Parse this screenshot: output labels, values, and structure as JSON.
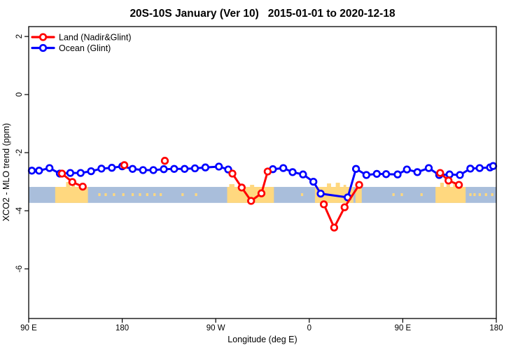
{
  "chart_data": {
    "type": "line",
    "title": "20S-10S January (Ver 10)   2015-01-01 to 2020-12-18",
    "xlabel": "Longitude (deg E)",
    "ylabel": "XCO2 - MLO trend (ppm)",
    "grid": false,
    "legend_position": "top-left-inside",
    "x_axis": {
      "range": [
        90,
        540
      ],
      "ticks": [
        {
          "pos": 90,
          "label": "90 E"
        },
        {
          "pos": 180,
          "label": "180"
        },
        {
          "pos": 270,
          "label": "90 W"
        },
        {
          "pos": 360,
          "label": "0"
        },
        {
          "pos": 450,
          "label": "90 E"
        },
        {
          "pos": 540,
          "label": "180"
        }
      ]
    },
    "y_axis": {
      "range": [
        2.34,
        -7.71
      ],
      "ticks": [
        {
          "pos": 2,
          "label": "2"
        },
        {
          "pos": 0,
          "label": "0"
        },
        {
          "pos": -2,
          "label": "-2"
        },
        {
          "pos": -4,
          "label": "-4"
        },
        {
          "pos": -6,
          "label": "-6"
        }
      ]
    },
    "series": [
      {
        "name": "Ocean (Glint)",
        "color": "#0000FF",
        "segments": [
          [
            [
              93,
              -2.62
            ],
            [
              100,
              -2.62
            ],
            [
              110,
              -2.53
            ],
            [
              120,
              -2.72
            ],
            [
              130,
              -2.7
            ],
            [
              140,
              -2.7
            ],
            [
              150,
              -2.64
            ],
            [
              160,
              -2.55
            ],
            [
              170,
              -2.52
            ],
            [
              180,
              -2.47
            ],
            [
              190,
              -2.56
            ],
            [
              200,
              -2.6
            ],
            [
              210,
              -2.6
            ],
            [
              220,
              -2.57
            ],
            [
              230,
              -2.56
            ],
            [
              240,
              -2.56
            ],
            [
              250,
              -2.54
            ],
            [
              260,
              -2.51
            ],
            [
              273,
              -2.48
            ],
            [
              282,
              -2.58
            ]
          ],
          [
            [
              325,
              -2.57
            ],
            [
              335,
              -2.53
            ],
            [
              344,
              -2.67
            ],
            [
              354,
              -2.75
            ],
            [
              364,
              -3.0
            ],
            [
              371,
              -3.41
            ],
            [
              397,
              -3.54
            ],
            [
              405,
              -2.56
            ],
            [
              415,
              -2.77
            ],
            [
              425,
              -2.73
            ],
            [
              434,
              -2.74
            ],
            [
              445,
              -2.75
            ],
            [
              454,
              -2.58
            ],
            [
              464,
              -2.67
            ],
            [
              475,
              -2.53
            ],
            [
              485,
              -2.77
            ],
            [
              495,
              -2.75
            ],
            [
              505,
              -2.77
            ],
            [
              515,
              -2.55
            ],
            [
              524,
              -2.53
            ],
            [
              534,
              -2.51
            ],
            [
              537,
              -2.46
            ]
          ]
        ]
      },
      {
        "name": "Land (Nadir&Glint)",
        "color": "#FF0000",
        "segments": [
          [
            [
              122,
              -2.72
            ],
            [
              132,
              -3.01
            ],
            [
              142,
              -3.17
            ]
          ],
          [
            [
              182,
              -2.43
            ]
          ],
          [
            [
              221,
              -2.28
            ]
          ],
          [
            [
              286,
              -2.72
            ],
            [
              295,
              -3.2
            ],
            [
              304,
              -3.66
            ],
            [
              314,
              -3.4
            ],
            [
              320,
              -2.65
            ]
          ],
          [
            [
              374,
              -3.78
            ],
            [
              384,
              -4.58
            ],
            [
              394,
              -3.88
            ],
            [
              408,
              -3.11
            ]
          ],
          [
            [
              486,
              -2.7
            ],
            [
              494,
              -2.96
            ],
            [
              504,
              -3.11
            ]
          ]
        ]
      }
    ],
    "map_strip": {
      "y_top": -3.18,
      "y_bottom": -3.73,
      "ocean_color": "#A9BEDB",
      "land_color": "#FFD87F",
      "land_patches": [
        {
          "from": 115.5,
          "to": 147
        },
        {
          "from": 281,
          "to": 326
        },
        {
          "from": 365.5,
          "to": 402.5
        },
        {
          "from": 404.5,
          "to": 410.5
        },
        {
          "from": 481.5,
          "to": 510.5
        }
      ],
      "coast_bumps": [
        {
          "from": 126,
          "to": 130,
          "rise": 7
        },
        {
          "from": 131.5,
          "to": 134.5,
          "rise": 5
        },
        {
          "from": 139,
          "to": 141,
          "rise": 3
        },
        {
          "from": 283,
          "to": 288,
          "rise": 4
        },
        {
          "from": 303,
          "to": 307,
          "rise": 3
        },
        {
          "from": 377,
          "to": 381,
          "rise": 5
        },
        {
          "from": 385.5,
          "to": 389.5,
          "rise": 6
        },
        {
          "from": 393,
          "to": 395.5,
          "rise": 3
        },
        {
          "from": 486,
          "to": 489.5,
          "rise": 6
        },
        {
          "from": 492,
          "to": 495.5,
          "rise": 7
        },
        {
          "from": 498.5,
          "to": 501.5,
          "rise": 4
        }
      ],
      "islands": [
        157,
        163,
        171,
        180,
        189,
        196,
        203,
        210,
        216,
        237,
        250,
        352,
        440,
        448,
        467,
        514,
        518,
        523,
        529,
        535
      ]
    }
  },
  "legend": {
    "items": [
      {
        "label": "Land (Nadir&Glint)",
        "color": "#FF0000"
      },
      {
        "label": "Ocean (Glint)",
        "color": "#0000FF"
      }
    ]
  }
}
